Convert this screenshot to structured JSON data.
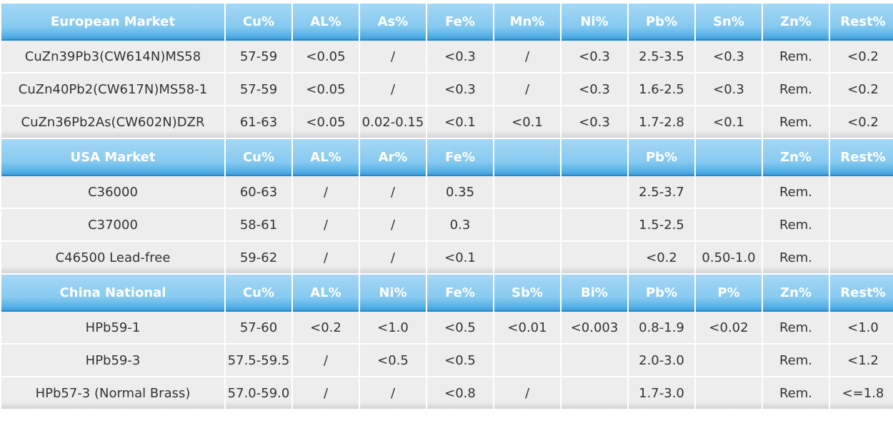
{
  "sections": [
    {
      "header": [
        "European Market",
        "Cu%",
        "AL%",
        "As%",
        "Fe%",
        "Mn%",
        "Ni%",
        "Pb%",
        "Sn%",
        "Zn%",
        "Rest%"
      ],
      "rows": [
        [
          "CuZn39Pb3(CW614N)MS58",
          "57-59",
          "<0.05",
          "/",
          "<0.3",
          "/",
          "<0.3",
          "2.5-3.5",
          "<0.3",
          "Rem.",
          "<0.2"
        ],
        [
          "CuZn40Pb2(CW617N)MS58-1",
          "57-59",
          "<0.05",
          "/",
          "<0.3",
          "/",
          "<0.3",
          "1.6-2.5",
          "<0.3",
          "Rem.",
          "<0.2"
        ],
        [
          "CuZn36Pb2As(CW602N)DZR",
          "61-63",
          "<0.05",
          "0.02-0.15",
          "<0.1",
          "<0.1",
          "<0.3",
          "1.7-2.8",
          "<0.1",
          "Rem.",
          "<0.2"
        ]
      ]
    },
    {
      "header": [
        "USA Market",
        "Cu%",
        "AL%",
        "Ar%",
        "Fe%",
        "",
        "",
        "Pb%",
        "",
        "Zn%",
        "Rest%"
      ],
      "rows": [
        [
          "C36000",
          "60-63",
          "/",
          "/",
          "0.35",
          "",
          "",
          "2.5-3.7",
          "",
          "Rem.",
          ""
        ],
        [
          "C37000",
          "58-61",
          "/",
          "/",
          "0.3",
          "",
          "",
          "1.5-2.5",
          "",
          "Rem.",
          ""
        ],
        [
          "C46500 Lead-free",
          "59-62",
          "/",
          "/",
          "<0.1",
          "",
          "",
          "<0.2",
          "0.50-1.0",
          "Rem.",
          ""
        ]
      ]
    },
    {
      "header": [
        "China National",
        "Cu%",
        "AL%",
        "Ni%",
        "Fe%",
        "Sb%",
        "Bi%",
        "Pb%",
        "P%",
        "Zn%",
        "Rest%"
      ],
      "rows": [
        [
          "HPb59-1",
          "57-60",
          "<0.2",
          "<1.0",
          "<0.5",
          "<0.01",
          "<0.003",
          "0.8-1.9",
          "<0.02",
          "Rem.",
          "<1.0"
        ],
        [
          "HPb59-3",
          "57.5-59.5",
          "/",
          "<0.5",
          "<0.5",
          "",
          "",
          "2.0-3.0",
          "",
          "Rem.",
          "<1.2"
        ],
        [
          "HPb57-3 (Normal Brass)",
          "57.0-59.0",
          "/",
          "/",
          "<0.8",
          "/",
          "",
          "1.7-3.0",
          "",
          "Rem.",
          "<=1.8"
        ]
      ]
    }
  ]
}
